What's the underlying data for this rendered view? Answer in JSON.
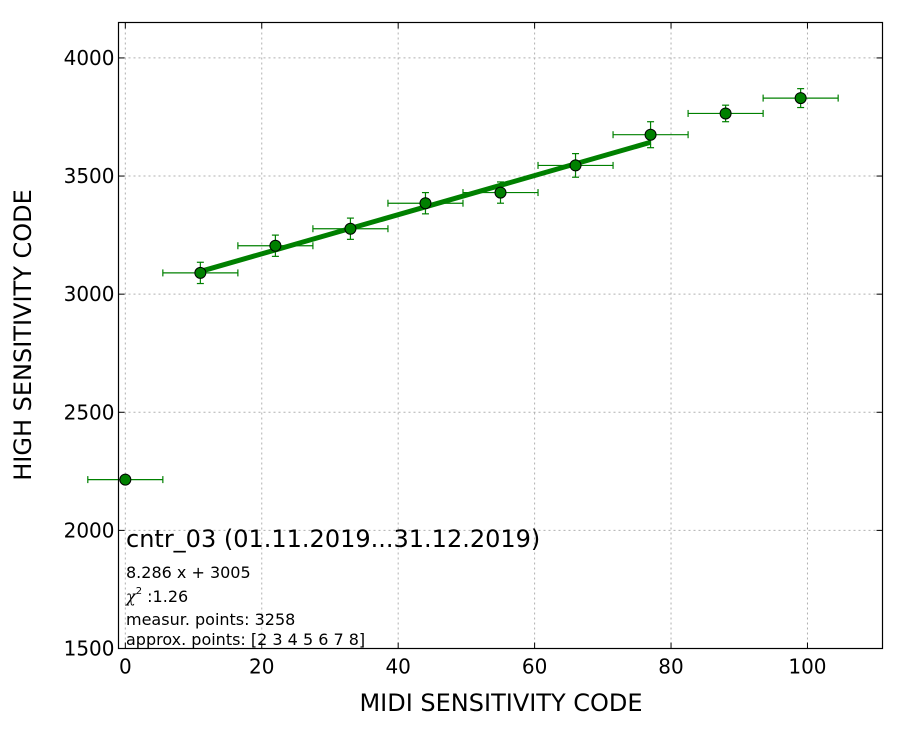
{
  "chart_data": {
    "type": "scatter",
    "title": "",
    "xlabel": "MIDI SENSITIVITY CODE",
    "ylabel": "HIGH SENSITIVITY CODE",
    "xlim": [
      -1,
      111
    ],
    "ylim": [
      1500,
      4150
    ],
    "xticks": [
      0,
      20,
      40,
      60,
      80,
      100
    ],
    "yticks": [
      1500,
      2000,
      2500,
      3000,
      3500,
      4000
    ],
    "grid": true,
    "series": [
      {
        "color": "#008000",
        "points": [
          {
            "x": 0,
            "y": 2215,
            "xerr": 5.5,
            "yerr": 0
          },
          {
            "x": 11,
            "y": 3090,
            "xerr": 5.5,
            "yerr": 45
          },
          {
            "x": 22,
            "y": 3205,
            "xerr": 5.5,
            "yerr": 45
          },
          {
            "x": 33,
            "y": 3277,
            "xerr": 5.5,
            "yerr": 45
          },
          {
            "x": 44,
            "y": 3385,
            "xerr": 5.5,
            "yerr": 45
          },
          {
            "x": 55,
            "y": 3430,
            "xerr": 5.5,
            "yerr": 45
          },
          {
            "x": 66,
            "y": 3545,
            "xerr": 5.5,
            "yerr": 50
          },
          {
            "x": 77,
            "y": 3675,
            "xerr": 5.5,
            "yerr": 55
          },
          {
            "x": 88,
            "y": 3765,
            "xerr": 5.5,
            "yerr": 35
          },
          {
            "x": 99,
            "y": 3830,
            "xerr": 5.5,
            "yerr": 40
          }
        ]
      }
    ],
    "fit": {
      "slope": 8.286,
      "intercept": 3005,
      "x_range": [
        11,
        77
      ],
      "color": "#008000"
    },
    "annotations": {
      "title": "cntr_03 (01.11.2019...31.12.2019)",
      "equation": "8.286 x + 3005",
      "chi_symbol": "χ",
      "chi_exp": "2",
      "chi_value": " :1.26",
      "measur": "measur. points: 3258",
      "approx": "approx. points: [2 3 4 5 6 7 8]"
    }
  }
}
